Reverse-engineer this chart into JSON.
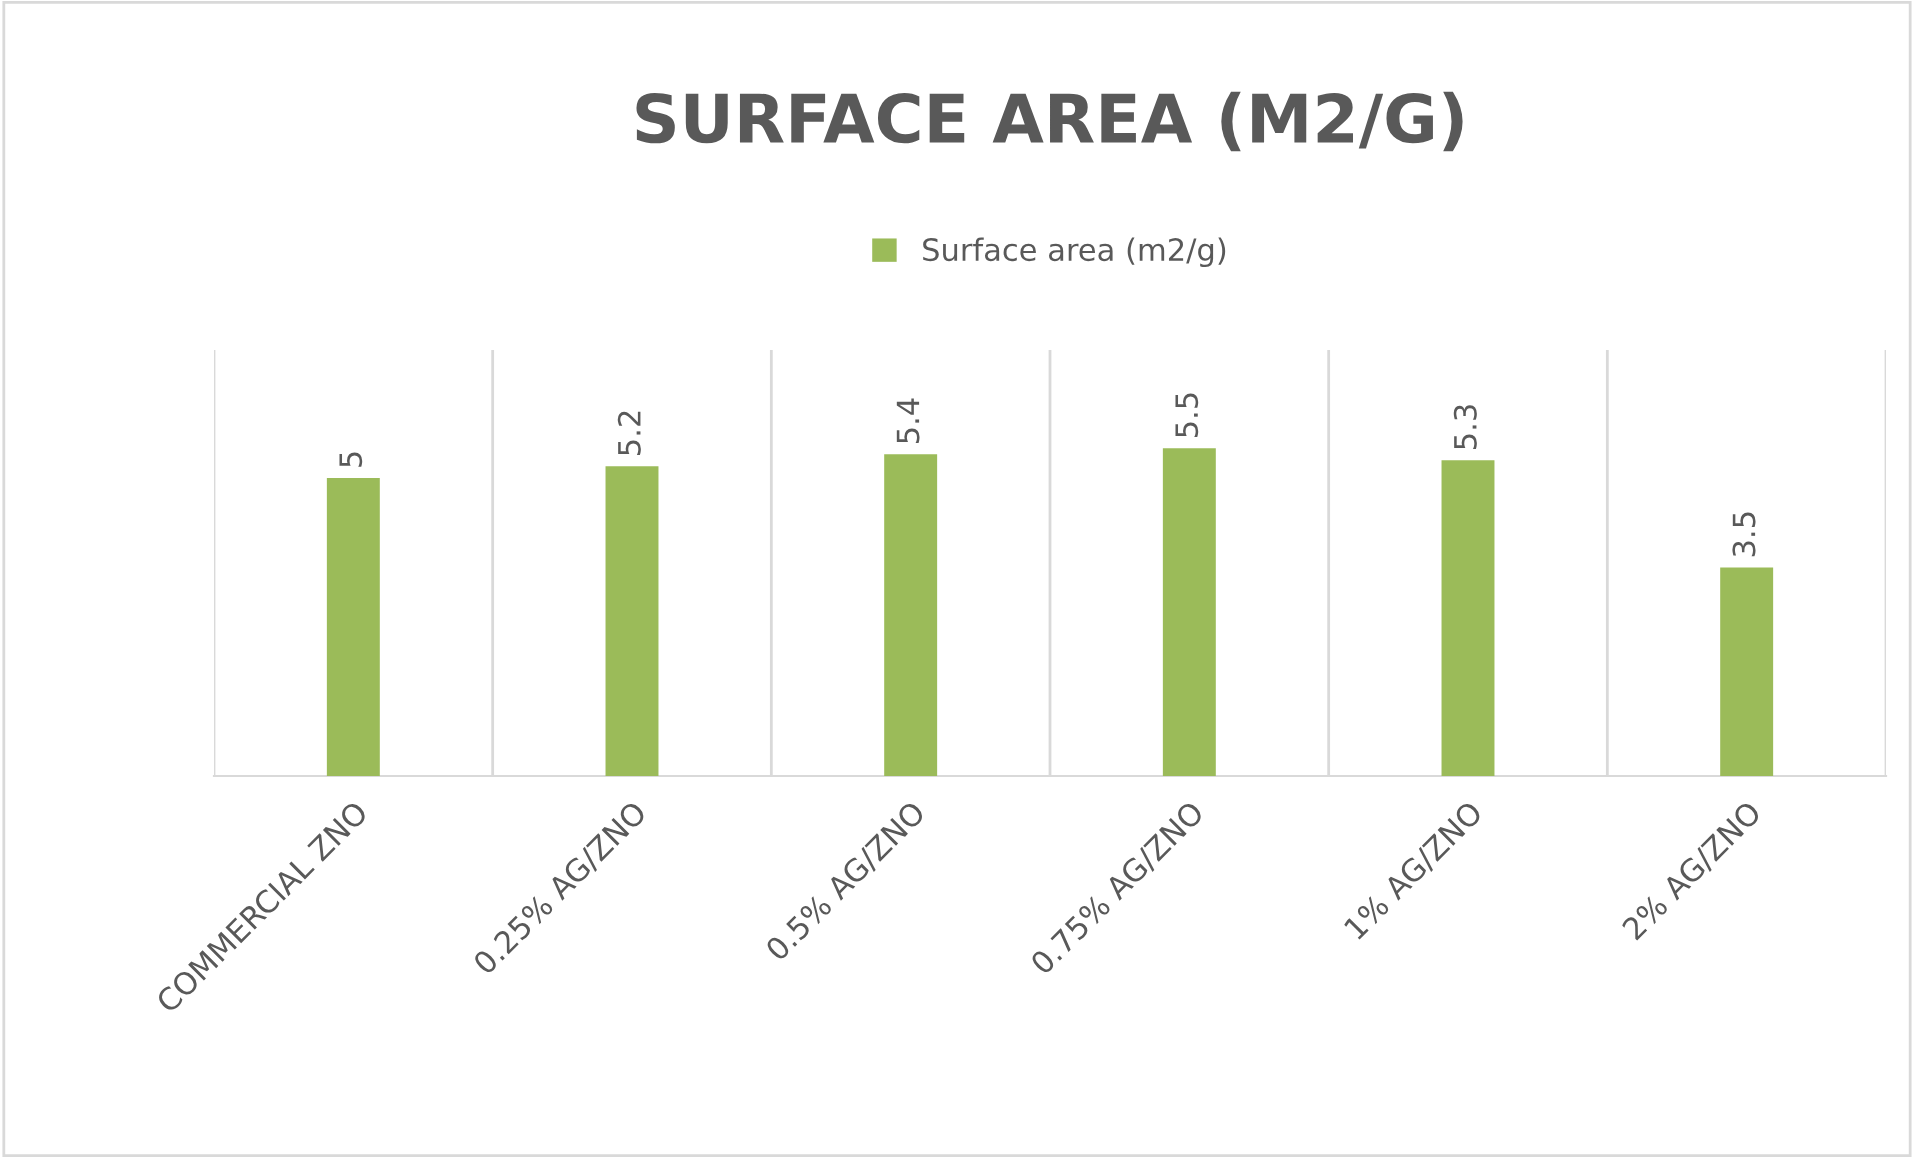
{
  "chart_data": {
    "type": "bar",
    "title": "SURFACE AREA (M2/G)",
    "categories": [
      "COMMERCIAL ZNO",
      "0.25% AG/ZNO",
      "0.5% AG/ZNO",
      "0.75% AG/ZNO",
      "1% AG/ZNO",
      "2% AG/ZNO"
    ],
    "series": [
      {
        "name": "Surface area (m2/g)",
        "color": "#9bbb59",
        "values": [
          5,
          5.2,
          5.4,
          5.5,
          5.3,
          3.5
        ]
      }
    ],
    "data_labels": true,
    "grid": "x",
    "legend": "top"
  }
}
